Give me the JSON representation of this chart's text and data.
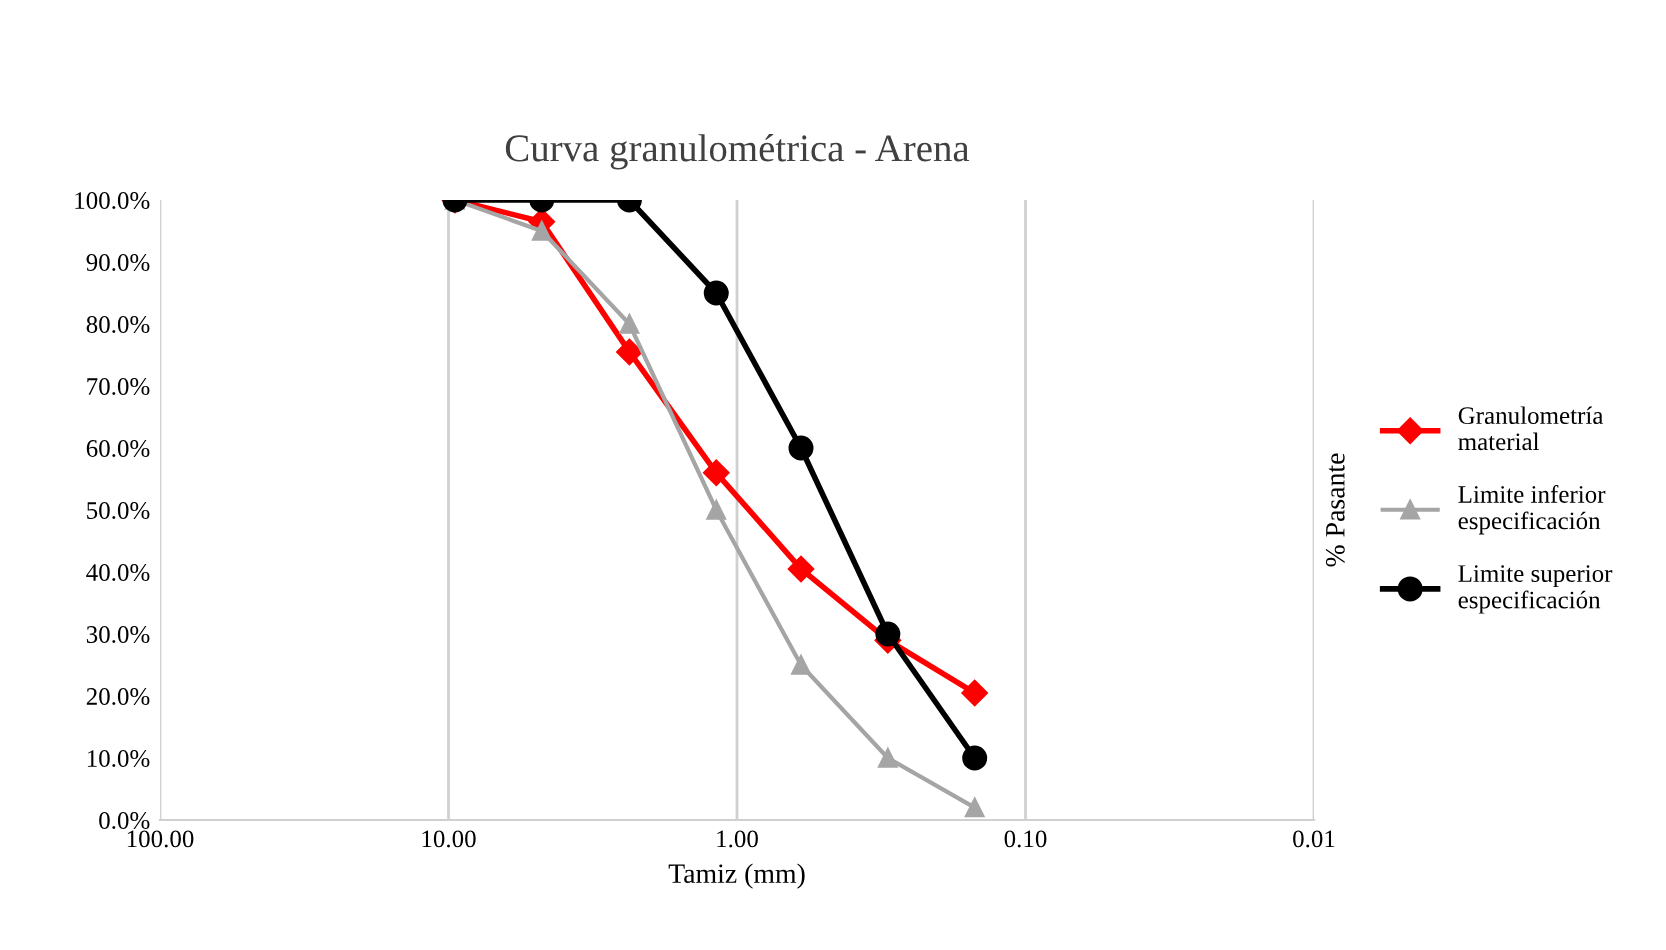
{
  "chart_data": {
    "type": "line",
    "title": "Curva granulométrica - Arena",
    "xlabel": "Tamiz (mm)",
    "ylabel": "% Pasante",
    "x": [
      9.5,
      4.75,
      2.36,
      1.18,
      0.6,
      0.3,
      0.15
    ],
    "series": [
      {
        "name": "Granulometría material",
        "color": "#ff0000",
        "marker": "diamond",
        "values": [
          100,
          96.5,
          75.5,
          56,
          40.5,
          29,
          20.5
        ]
      },
      {
        "name": "Limite inferior especificación",
        "color": "#a5a5a5",
        "marker": "triangle",
        "values": [
          100,
          95,
          80,
          50,
          25,
          10,
          2
        ]
      },
      {
        "name": "Limite superior especificación",
        "color": "#000000",
        "marker": "circle",
        "values": [
          100,
          100,
          100,
          85,
          60,
          30,
          10
        ]
      }
    ],
    "log": "x",
    "xlim": [
      100,
      0.01
    ],
    "xticks": [
      {
        "value": 100,
        "label": "100.00"
      },
      {
        "value": 10,
        "label": "10.00"
      },
      {
        "value": 1,
        "label": "1.00"
      },
      {
        "value": 0.1,
        "label": "0.10"
      },
      {
        "value": 0.01,
        "label": "0.01"
      }
    ],
    "ylim": [
      0,
      100
    ],
    "yticks": [
      {
        "value": 0,
        "label": "0.0%"
      },
      {
        "value": 10,
        "label": "10.0%"
      },
      {
        "value": 20,
        "label": "20.0%"
      },
      {
        "value": 30,
        "label": "30.0%"
      },
      {
        "value": 40,
        "label": "40.0%"
      },
      {
        "value": 50,
        "label": "50.0%"
      },
      {
        "value": 60,
        "label": "60.0%"
      },
      {
        "value": 70,
        "label": "70.0%"
      },
      {
        "value": 80,
        "label": "80.0%"
      },
      {
        "value": 90,
        "label": "90.0%"
      },
      {
        "value": 100,
        "label": "100.0%"
      }
    ],
    "grid": "x",
    "legend": "right",
    "line_style": "solid"
  }
}
